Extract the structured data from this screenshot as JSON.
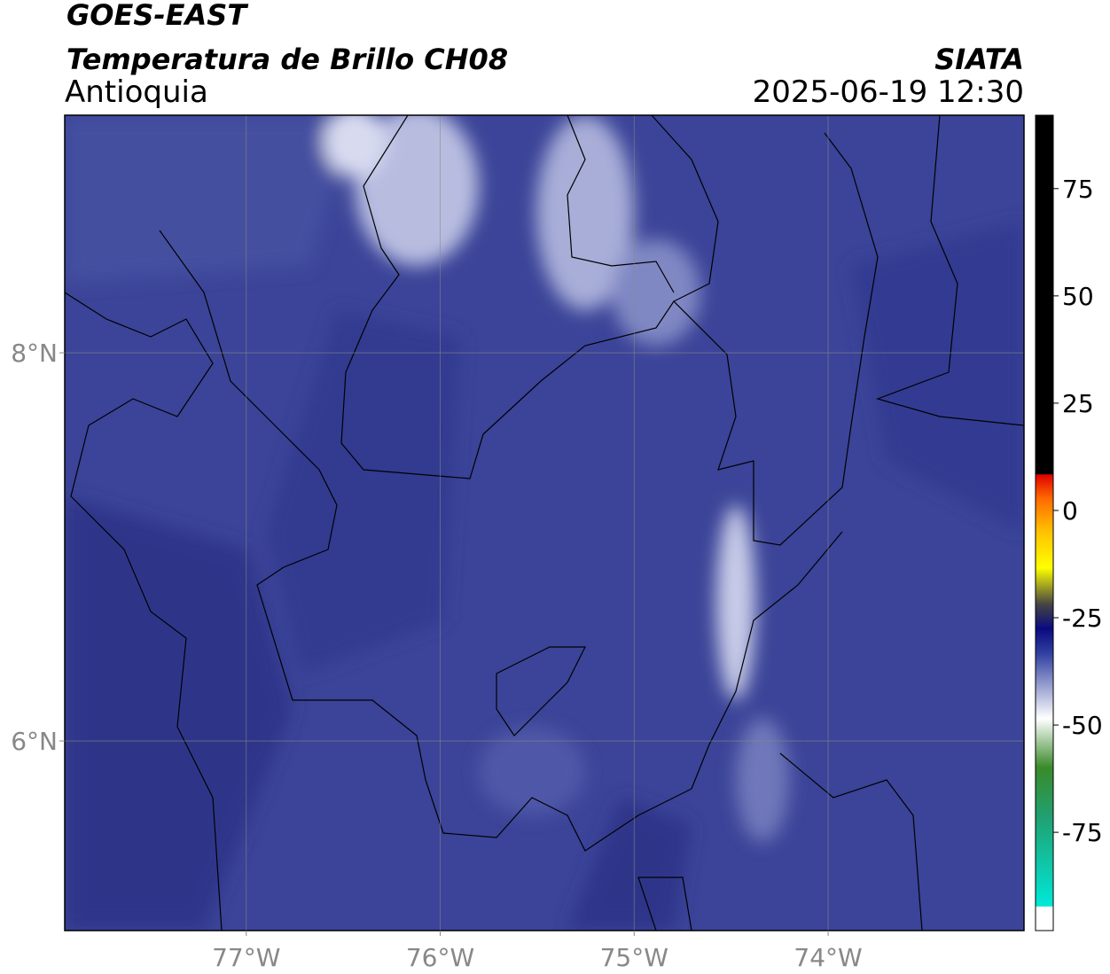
{
  "header": {
    "title": "GOES-EAST",
    "subtitle": "Temperatura de Brillo CH08",
    "region": "Antioquia",
    "source": "SIATA",
    "timestamp": "2025-06-19 12:30"
  },
  "map": {
    "lonlim": [
      -77.936,
      -72.99
    ],
    "latlim": [
      5.023,
      9.224
    ],
    "lon_ticks": [
      {
        "value": -77,
        "label": "77°W"
      },
      {
        "value": -76,
        "label": "76°W"
      },
      {
        "value": -75,
        "label": "75°W"
      },
      {
        "value": -74,
        "label": "74°W"
      }
    ],
    "lat_ticks": [
      {
        "value": 8,
        "label": "8°N"
      },
      {
        "value": 6,
        "label": "6°N"
      }
    ],
    "grid": true
  },
  "colorbar": {
    "lim": [
      -97.9,
      92.1
    ],
    "ticks": [
      -75,
      -50,
      -25,
      0,
      25,
      50,
      75
    ]
  }
}
